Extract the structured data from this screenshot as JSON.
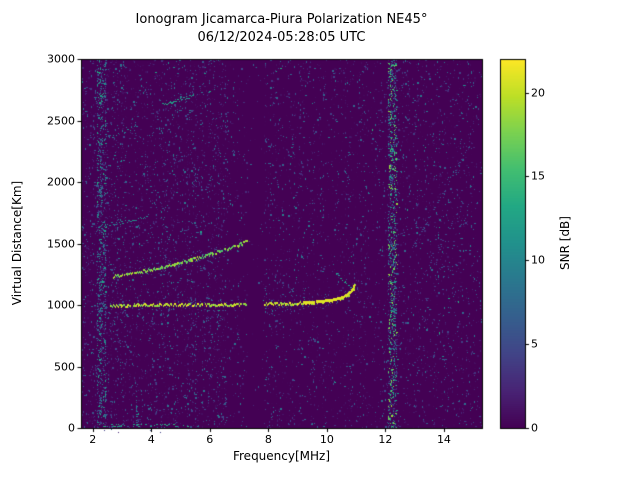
{
  "chart_data": {
    "type": "heatmap",
    "title": "Ionogram Jicamarca-Piura Polarization NE45°",
    "subtitle": "06/12/2024-05:28:05 UTC",
    "xlabel": "Frequency[MHz]",
    "ylabel": "Virtual Distance[Km]",
    "colorbar_label": "SNR [dB]",
    "colormap": "viridis",
    "background_color": "#440154",
    "xlim": [
      1.6,
      15.3
    ],
    "ylim": [
      0,
      3000
    ],
    "clim": [
      0,
      22
    ],
    "xticks": [
      2,
      4,
      6,
      8,
      10,
      12,
      14
    ],
    "yticks": [
      0,
      500,
      1000,
      1500,
      2000,
      2500,
      3000
    ],
    "colorbar_ticks": [
      0,
      5,
      10,
      15,
      20
    ],
    "legend": "none",
    "grid": false,
    "echo_traces": [
      {
        "name": "f-region-first-hop",
        "snr": 21,
        "density": 0.95,
        "thickness_px": 2,
        "emphasis_range": [
          9.2,
          11.0
        ],
        "points": [
          [
            2.6,
            1000
          ],
          [
            3.2,
            1000
          ],
          [
            4,
            1002
          ],
          [
            5,
            1004
          ],
          [
            6,
            1006
          ],
          [
            6.6,
            1008
          ],
          [
            7.3,
            1008
          ],
          [
            7.9,
            1010
          ],
          [
            8.6,
            1012
          ],
          [
            9.2,
            1018
          ],
          [
            9.8,
            1028
          ],
          [
            10.2,
            1040
          ],
          [
            10.5,
            1058
          ],
          [
            10.7,
            1082
          ],
          [
            10.85,
            1115
          ],
          [
            10.95,
            1160
          ]
        ]
      },
      {
        "name": "cusp-upper-branch",
        "snr": 13,
        "density": 0.7,
        "thickness_px": 1,
        "points": [
          [
            10.3,
            1265
          ],
          [
            10.55,
            1200
          ],
          [
            10.8,
            1150
          ]
        ]
      },
      {
        "name": "f-region-second-hop",
        "snr": 19,
        "density": 0.9,
        "thickness_px": 2,
        "points": [
          [
            2.7,
            1235
          ],
          [
            3.2,
            1255
          ],
          [
            3.8,
            1280
          ],
          [
            4.4,
            1310
          ],
          [
            5.0,
            1345
          ],
          [
            5.6,
            1385
          ],
          [
            6.1,
            1420
          ],
          [
            6.6,
            1455
          ],
          [
            7.0,
            1490
          ],
          [
            7.3,
            1525
          ]
        ]
      },
      {
        "name": "third-hop-faint-a",
        "snr": 11,
        "density": 0.55,
        "thickness_px": 1,
        "points": [
          [
            2.2,
            1640
          ],
          [
            2.8,
            1660
          ],
          [
            3.4,
            1690
          ],
          [
            3.9,
            1715
          ]
        ]
      },
      {
        "name": "third-hop-faint-b",
        "snr": 10,
        "density": 0.5,
        "thickness_px": 1,
        "points": [
          [
            2.2,
            2340
          ],
          [
            2.7,
            2375
          ],
          [
            3.2,
            2420
          ],
          [
            3.6,
            2465
          ]
        ]
      },
      {
        "name": "fourth-hop-bright-segment",
        "snr": 13,
        "density": 0.7,
        "thickness_px": 1,
        "points": [
          [
            4.3,
            2620
          ],
          [
            4.8,
            2655
          ],
          [
            5.2,
            2685
          ],
          [
            5.5,
            2705
          ]
        ]
      },
      {
        "name": "high-faint-segment",
        "snr": 9,
        "density": 0.45,
        "thickness_px": 1,
        "points": [
          [
            2.2,
            2100
          ],
          [
            2.6,
            2125
          ]
        ]
      },
      {
        "name": "ground-clutter-line",
        "snr": 14,
        "density": 0.4,
        "thickness_px": 1,
        "points": [
          [
            2.3,
            18
          ],
          [
            3.4,
            18
          ],
          [
            4.6,
            18
          ],
          [
            5.3,
            18
          ]
        ]
      },
      {
        "name": "clutter-column",
        "snr": 10,
        "density": 0.5,
        "thickness_px": 1,
        "points": [
          [
            3.5,
            5
          ],
          [
            3.5,
            255
          ]
        ]
      },
      {
        "name": "noise-streak-right-a",
        "snr": 5,
        "density": 0.3,
        "thickness_px": 1,
        "points": [
          [
            12.9,
            1450
          ],
          [
            13.6,
            1750
          ],
          [
            14.3,
            2050
          ],
          [
            14.9,
            2300
          ]
        ]
      },
      {
        "name": "noise-streak-right-b",
        "snr": 4.5,
        "density": 0.25,
        "thickness_px": 1,
        "points": [
          [
            13.1,
            1150
          ],
          [
            13.9,
            1500
          ],
          [
            14.7,
            1850
          ]
        ]
      }
    ],
    "rfi_bands": [
      {
        "name": "rfi-2.3MHz",
        "freq_range": [
          2.15,
          2.45
        ],
        "character": "noisy",
        "speckle_probability": 0.5,
        "snr_range": [
          2,
          14
        ]
      },
      {
        "name": "quiet-band-6.8MHz",
        "freq_range": [
          6.6,
          7.3
        ],
        "character": "quiet",
        "speckle_probability": 0.05
      },
      {
        "name": "notch-7.5MHz",
        "freq_range": [
          7.3,
          7.85
        ],
        "character": "blanked",
        "speckle_probability": 0.015
      },
      {
        "name": "quiet-band-10MHz",
        "freq_range": [
          9.95,
          10.2
        ],
        "character": "quiet",
        "speckle_probability": 0.05
      },
      {
        "name": "rfi-12.3MHz",
        "freq_range": [
          12.1,
          12.4
        ],
        "character": "noisy",
        "speckle_probability": 0.65,
        "snr_range": [
          3,
          19
        ]
      }
    ],
    "noise": {
      "base_speckle_probability_low_freq": 0.16,
      "base_speckle_probability_high_freq": 0.1,
      "low_high_split_mhz": 7.9,
      "typical_snr_max": 9
    }
  }
}
